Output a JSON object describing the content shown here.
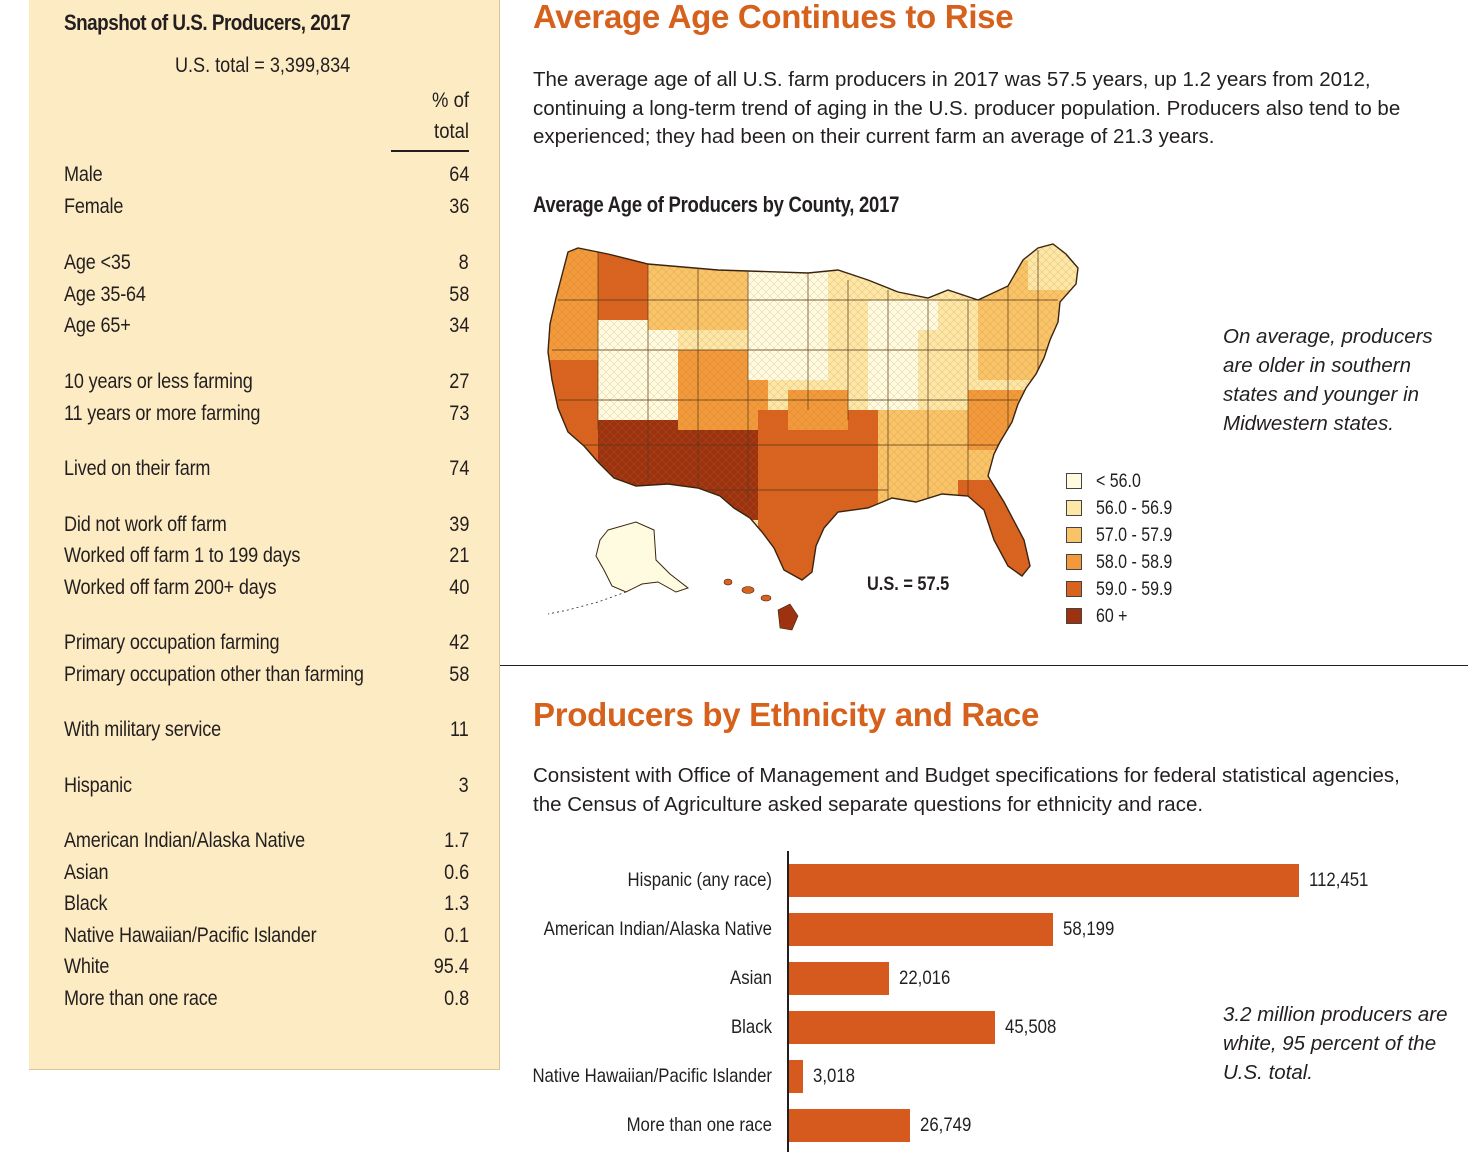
{
  "snapshot": {
    "title": "Snapshot of U.S. Producers, 2017",
    "total": "U.S. total = 3,399,834",
    "col_head_line1": "% of",
    "col_head_line2": "total",
    "rows": [
      {
        "label": "Male",
        "value": "64"
      },
      {
        "label": "Female",
        "value": "36"
      },
      {
        "label": "Age <35",
        "value": "8"
      },
      {
        "label": "Age 35-64",
        "value": "58"
      },
      {
        "label": "Age 65+",
        "value": "34"
      },
      {
        "label": "10 years or less farming",
        "value": "27"
      },
      {
        "label": "11 years or more farming",
        "value": "73"
      },
      {
        "label": "Lived on their farm",
        "value": "74"
      },
      {
        "label": "Did not work off farm",
        "value": "39"
      },
      {
        "label": "Worked off farm 1 to 199 days",
        "value": "21"
      },
      {
        "label": "Worked off farm 200+ days",
        "value": "40"
      },
      {
        "label": "Primary occupation farming",
        "value": "42"
      },
      {
        "label": "Primary occupation other than farming",
        "value": "58"
      },
      {
        "label": "With military service",
        "value": "11"
      },
      {
        "label": "Hispanic",
        "value": "3"
      },
      {
        "label": "American Indian/Alaska Native",
        "value": "1.7"
      },
      {
        "label": "Asian",
        "value": "0.6"
      },
      {
        "label": "Black",
        "value": "1.3"
      },
      {
        "label": "Native Hawaiian/Pacific Islander",
        "value": "0.1"
      },
      {
        "label": "White",
        "value": "95.4"
      },
      {
        "label": "More than one race",
        "value": "0.8"
      }
    ]
  },
  "age_section": {
    "heading": "Average Age Continues to Rise",
    "body": "The average age of all U.S. farm producers in 2017 was 57.5 years, up 1.2 years from 2012, continuing a long-term trend of aging in the U.S. producer population. Producers also tend to be experienced; they had been on their current farm an average of 21.3 years.",
    "map_title": "Average Age of Producers by County, 2017",
    "us_value": "U.S. = 57.5",
    "callout": "On average, producers are older in southern states and younger in Midwestern states.",
    "legend": [
      {
        "label": "< 56.0",
        "color": "#fffbe0"
      },
      {
        "label": "56.0 - 56.9",
        "color": "#fde7a6"
      },
      {
        "label": "57.0 - 57.9",
        "color": "#f9c368"
      },
      {
        "label": "58.0 - 58.9",
        "color": "#f29a3b"
      },
      {
        "label": "59.0 - 59.9",
        "color": "#d9621e"
      },
      {
        "label": "60 +",
        "color": "#9c3210"
      }
    ]
  },
  "ethnicity_section": {
    "heading": "Producers by Ethnicity and Race",
    "body": "Consistent with Office of Management and Budget specifications for federal statistical agencies, the Census of Agriculture asked separate questions for ethnicity and race.",
    "callout": "3.2 million producers are white, 95 percent of the U.S. total."
  },
  "chart_data": {
    "type": "bar",
    "orientation": "horizontal",
    "title": "",
    "categories": [
      "Hispanic (any race)",
      "American Indian/Alaska Native",
      "Asian",
      "Black",
      "Native Hawaiian/Pacific Islander",
      "More than one race"
    ],
    "values": [
      112451,
      58199,
      22016,
      45508,
      3018,
      26749
    ],
    "value_labels": [
      "112,451",
      "58,199",
      "22,016",
      "45,508",
      "3,018",
      "26,749"
    ],
    "bar_color": "#d65a1d",
    "xlim": [
      0,
      115000
    ]
  }
}
